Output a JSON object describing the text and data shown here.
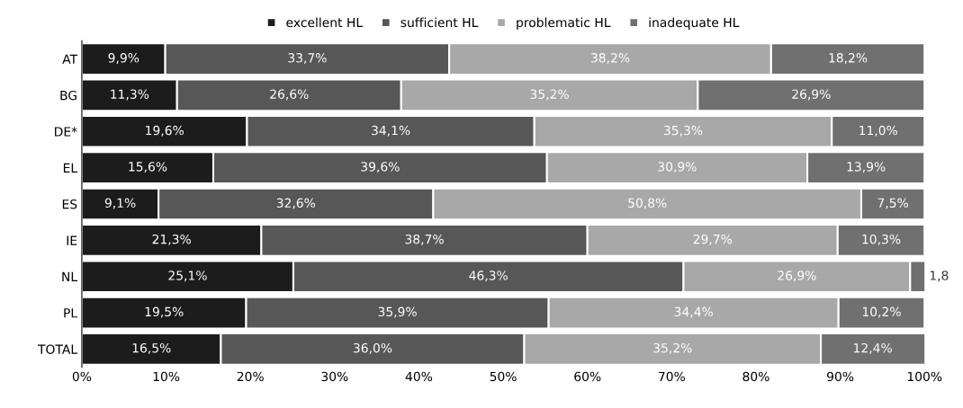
{
  "chart_data": {
    "type": "bar",
    "orientation": "horizontal",
    "stacked": true,
    "legend": "top",
    "categories": [
      "AT",
      "BG",
      "DE*",
      "EL",
      "ES",
      "IE",
      "NL",
      "PL",
      "TOTAL"
    ],
    "series": [
      {
        "name": "excellent HL",
        "color": "#1c1c1c",
        "values": [
          9.9,
          11.3,
          19.6,
          15.6,
          9.1,
          21.3,
          25.1,
          19.5,
          16.5
        ],
        "value_labels": [
          "9,9%",
          "11,3%",
          "19,6%",
          "15,6%",
          "9,1%",
          "21,3%",
          "25,1%",
          "19,5%",
          "16,5%"
        ]
      },
      {
        "name": "sufficient HL",
        "color": "#575757",
        "values": [
          33.7,
          26.6,
          34.1,
          39.6,
          32.6,
          38.7,
          46.3,
          35.9,
          36.0
        ],
        "value_labels": [
          "33,7%",
          "26,6%",
          "34,1%",
          "39,6%",
          "32,6%",
          "38,7%",
          "46,3%",
          "35,9%",
          "36,0%"
        ]
      },
      {
        "name": "problematic HL",
        "color": "#a8a8a8",
        "values": [
          38.2,
          35.2,
          35.3,
          30.9,
          50.8,
          29.7,
          26.9,
          34.4,
          35.2
        ],
        "value_labels": [
          "38,2%",
          "35,2%",
          "35,3%",
          "30,9%",
          "50,8%",
          "29,7%",
          "26,9%",
          "34,4%",
          "35,2%"
        ]
      },
      {
        "name": "inadequate HL",
        "color": "#707070",
        "values": [
          18.2,
          26.9,
          11.0,
          13.9,
          7.5,
          10.3,
          1.8,
          10.2,
          12.4
        ],
        "value_labels": [
          "18,2%",
          "26,9%",
          "11,0%",
          "13,9%",
          "7,5%",
          "10,3%",
          "1,8",
          "10,2%",
          "12,4%"
        ]
      }
    ],
    "xlim": [
      0,
      100
    ],
    "xticks": [
      {
        "value": 0,
        "label": "0%"
      },
      {
        "value": 10,
        "label": "10%"
      },
      {
        "value": 20,
        "label": "20%"
      },
      {
        "value": 30,
        "label": "30%"
      },
      {
        "value": 40,
        "label": "40%"
      },
      {
        "value": 50,
        "label": "50%"
      },
      {
        "value": 60,
        "label": "60%"
      },
      {
        "value": 70,
        "label": "70%"
      },
      {
        "value": 80,
        "label": "80%"
      },
      {
        "value": 90,
        "label": "90%"
      },
      {
        "value": 100,
        "label": "100%"
      }
    ]
  }
}
